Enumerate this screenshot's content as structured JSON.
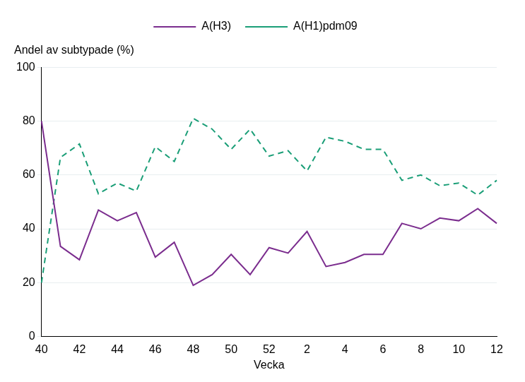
{
  "chart_data": {
    "type": "line",
    "y_label": "Andel av subtypade (%)",
    "x_label": "Vecka",
    "categories": [
      40,
      null,
      42,
      null,
      44,
      null,
      46,
      null,
      48,
      null,
      50,
      null,
      52,
      null,
      2,
      null,
      4,
      null,
      6,
      null,
      8,
      null,
      10,
      null,
      12
    ],
    "series": [
      {
        "name": "A(H3)",
        "color": "#7b2d8e",
        "line_style": "solid",
        "values": [
          80,
          33.5,
          28.5,
          47,
          43,
          46,
          29.5,
          35,
          19,
          23,
          30.5,
          23,
          33,
          31,
          39,
          26,
          27.5,
          30.5,
          30.5,
          42,
          40,
          44,
          43,
          47.5,
          42
        ]
      },
      {
        "name": "A(H1)pdm09",
        "color": "#1a9e77",
        "line_style": "dashed",
        "values": [
          20,
          66.5,
          71.5,
          53,
          57,
          54,
          70.5,
          65,
          81,
          77,
          69.5,
          77,
          67,
          69,
          61.5,
          74,
          72.5,
          69.5,
          69.5,
          58,
          60,
          56,
          57,
          52.5,
          58
        ]
      }
    ],
    "ylim": [
      0,
      100
    ],
    "yticks": [
      0,
      20,
      40,
      60,
      80,
      100
    ],
    "grid": true,
    "legend": "top"
  }
}
